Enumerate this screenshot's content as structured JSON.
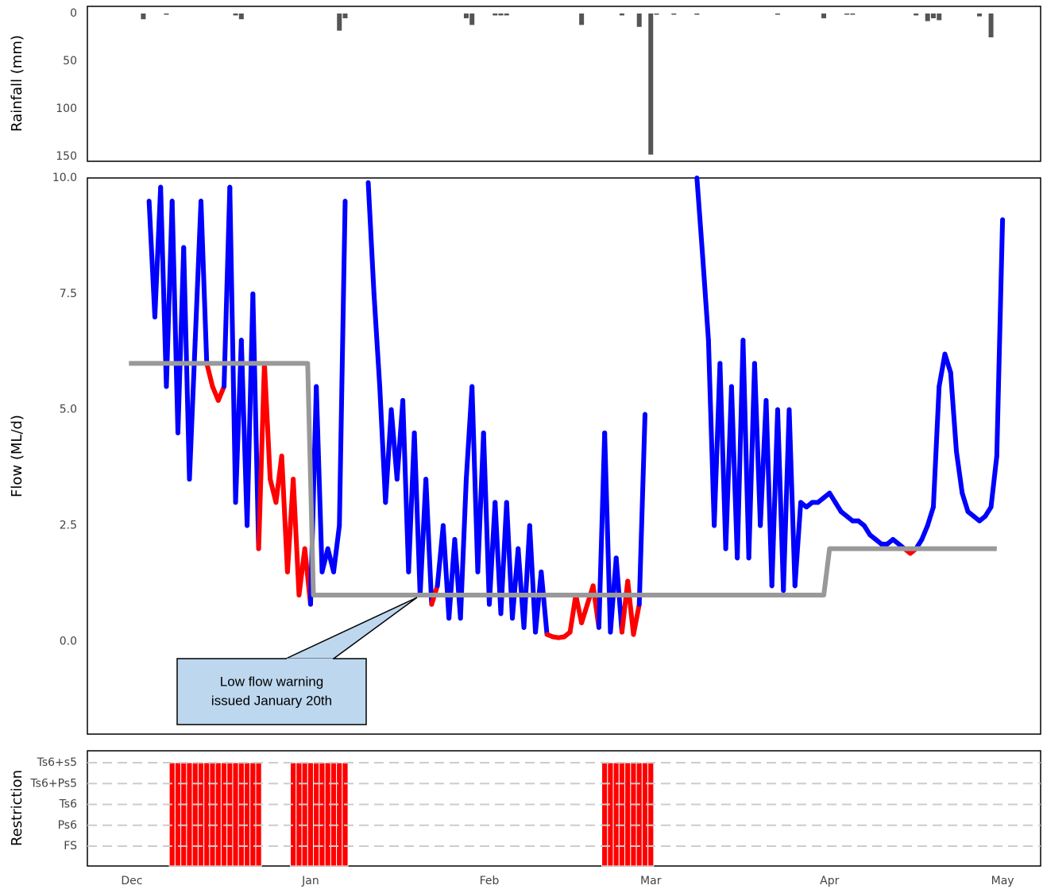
{
  "chart_data": [
    {
      "type": "bar",
      "axis_label": "Rainfall (mm)",
      "inverted": true,
      "color": "#555555",
      "x": [
        2,
        6,
        18,
        19,
        36,
        37,
        58,
        59,
        63,
        64,
        65,
        78,
        85,
        88,
        90,
        91,
        94,
        98,
        112,
        120,
        124,
        125,
        136,
        138,
        139,
        140,
        147,
        149
      ],
      "values": [
        6,
        1,
        2,
        6,
        18,
        5,
        5,
        12,
        2,
        2,
        2,
        12,
        2,
        14,
        148,
        1,
        1,
        1,
        1,
        5,
        1,
        1,
        2,
        8,
        5,
        7,
        3,
        25
      ],
      "ylim": [
        -7.5,
        155
      ],
      "yticks": [
        0,
        50,
        100,
        150
      ]
    },
    {
      "type": "line",
      "axis_label": "Flow (ML/d)",
      "color_above": "#0000ff",
      "color_below": "#ff0000",
      "x": [
        3,
        4,
        5,
        6,
        7,
        8,
        9,
        10,
        11,
        12,
        13,
        14,
        15,
        16,
        17,
        18,
        19,
        20,
        21,
        22,
        23,
        24,
        25,
        26,
        27,
        28,
        29,
        30,
        31,
        32,
        33,
        34,
        35,
        36,
        37,
        38,
        39,
        40,
        41,
        42,
        43,
        44,
        45,
        46,
        47,
        48,
        49,
        50,
        51,
        52,
        53,
        54,
        55,
        56,
        57,
        58,
        59,
        60,
        61,
        62,
        63,
        64,
        65,
        66,
        67,
        68,
        69,
        70,
        71,
        72,
        73,
        74,
        75,
        76,
        77,
        78,
        79,
        80,
        81,
        82,
        83,
        84,
        85,
        86,
        87,
        88,
        89,
        90,
        91,
        92,
        93,
        94,
        95,
        96,
        97,
        98,
        99,
        100,
        101,
        102,
        103,
        104,
        105,
        106,
        107,
        108,
        109,
        110,
        111,
        112,
        113,
        114,
        115,
        116,
        117,
        118,
        119,
        120,
        121,
        122,
        123,
        124,
        125,
        126,
        127,
        128,
        129,
        130,
        131,
        132,
        133,
        134,
        135,
        136,
        137,
        138,
        139,
        140,
        141,
        142,
        143,
        144,
        145,
        146,
        147,
        148,
        149,
        150,
        151
      ],
      "values": [
        9.5,
        7.0,
        9.8,
        5.5,
        9.5,
        4.5,
        8.5,
        3.5,
        6.5,
        9.5,
        6.0,
        5.5,
        5.2,
        5.5,
        9.8,
        3.0,
        6.5,
        2.5,
        7.5,
        2.0,
        6.0,
        3.5,
        3.0,
        4.0,
        1.5,
        3.5,
        1.0,
        2.0,
        0.8,
        5.5,
        1.5,
        2.0,
        1.5,
        2.5,
        9.5,
        null,
        null,
        null,
        9.9,
        7.5,
        5.5,
        3.0,
        5.0,
        3.5,
        5.2,
        1.5,
        4.5,
        1.0,
        3.5,
        0.8,
        1.2,
        2.5,
        0.5,
        2.2,
        0.5,
        3.5,
        5.5,
        1.5,
        4.5,
        0.8,
        3.0,
        0.6,
        3.0,
        0.5,
        2.0,
        0.3,
        2.5,
        0.2,
        1.5,
        0.15,
        0.1,
        0.08,
        0.1,
        0.2,
        1.0,
        0.4,
        0.8,
        1.2,
        0.3,
        4.5,
        0.2,
        1.8,
        0.2,
        1.3,
        0.15,
        0.8,
        4.9,
        null,
        null,
        null,
        null,
        null,
        null,
        null,
        null,
        10.0,
        8.3,
        6.5,
        2.5,
        6.0,
        2.0,
        5.5,
        1.8,
        6.5,
        1.8,
        6.0,
        2.5,
        5.2,
        1.2,
        5.0,
        1.1,
        5.0,
        1.2,
        3.0,
        2.9,
        3.0,
        3.0,
        3.1,
        3.2,
        3.0,
        2.8,
        2.7,
        2.6,
        2.6,
        2.5,
        2.3,
        2.2,
        2.1,
        2.1,
        2.2,
        2.1,
        2.0,
        1.9,
        2.0,
        2.2,
        2.5,
        2.9,
        5.5,
        6.2,
        5.8,
        4.1,
        3.2,
        2.8,
        2.7,
        2.6,
        2.7,
        2.9,
        4.0,
        9.1
      ],
      "threshold": {
        "color": "#999999",
        "x": [
          -0.5,
          30.5,
          31.5,
          120,
          121,
          150
        ],
        "values": [
          6,
          6,
          1,
          1,
          2,
          2
        ]
      },
      "ylim": [
        -2,
        10
      ],
      "yticks": [
        {
          "value": 0,
          "label": "0.0"
        },
        2.5,
        {
          "value": 5,
          "label": "5.0"
        },
        7.5,
        {
          "value": 10,
          "label": "10.0"
        }
      ],
      "annotation": [
        "Low flow warning",
        "issued January 20th"
      ]
    },
    {
      "type": "bar",
      "axis_label": "Restriction",
      "color": "#ff0000",
      "grid": true,
      "categories": [
        "FS",
        "Ps6",
        "Ts6",
        "Ts6+Ps5",
        "Ts6+s5"
      ],
      "x": [
        7,
        8,
        9,
        10,
        11,
        12,
        13,
        14,
        15,
        16,
        17,
        18,
        19,
        20,
        21,
        22,
        28,
        29,
        30,
        31,
        32,
        33,
        34,
        35,
        36,
        37,
        82,
        83,
        84,
        85,
        86,
        87,
        88,
        89,
        90
      ],
      "values": [
        "Ts6+s5",
        "Ts6+s5",
        "Ts6+s5",
        "Ts6+s5",
        "Ts6+s5",
        "Ts6+s5",
        "Ts6+s5",
        "Ts6+s5",
        "Ts6+s5",
        "Ts6+s5",
        "Ts6+s5",
        "Ts6+s5",
        "Ts6+s5",
        "Ts6+s5",
        "Ts6+s5",
        "Ts6+s5",
        "Ts6+s5",
        "Ts6+s5",
        "Ts6+s5",
        "Ts6+s5",
        "Ts6+s5",
        "Ts6+s5",
        "Ts6+s5",
        "Ts6+s5",
        "Ts6+s5",
        "Ts6+s5",
        "Ts6+s5",
        "Ts6+s5",
        "Ts6+s5",
        "Ts6+s5",
        "Ts6+s5",
        "Ts6+s5",
        "Ts6+s5",
        "Ts6+s5",
        "Ts6+s5"
      ],
      "xlim": [
        -7.7,
        157.6
      ],
      "xticks": [
        {
          "value": 0,
          "label": "Dec"
        },
        {
          "value": 31,
          "label": "Jan"
        },
        {
          "value": 62,
          "label": "Feb"
        },
        {
          "value": 90,
          "label": "Mar"
        },
        {
          "value": 121,
          "label": "Apr"
        },
        {
          "value": 151,
          "label": "May"
        }
      ]
    }
  ]
}
